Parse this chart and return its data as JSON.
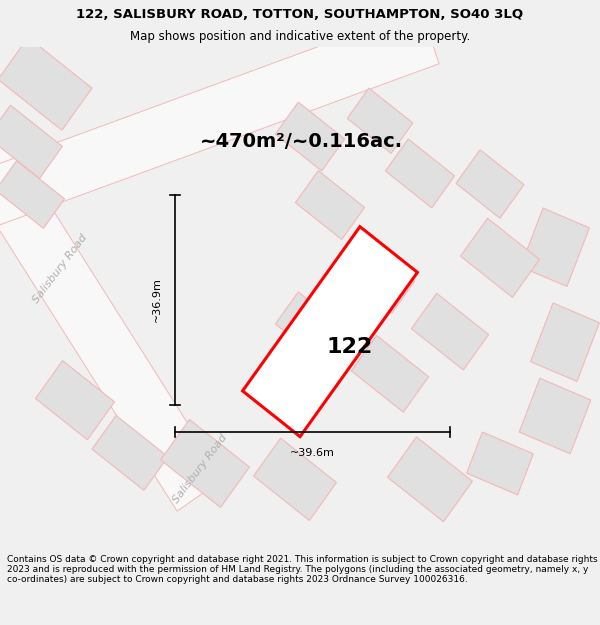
{
  "title_line1": "122, SALISBURY ROAD, TOTTON, SOUTHAMPTON, SO40 3LQ",
  "title_line2": "Map shows position and indicative extent of the property.",
  "area_label": "~470m²/~0.116ac.",
  "property_number": "122",
  "dim_width": "~39.6m",
  "dim_height": "~36.9m",
  "road_label_upper": "Salisbury Road",
  "road_label_lower": "Salisbury Road",
  "footer_text": "Contains OS data © Crown copyright and database right 2021. This information is subject to Crown copyright and database rights 2023 and is reproduced with the permission of HM Land Registry. The polygons (including the associated geometry, namely x, y co-ordinates) are subject to Crown copyright and database rights 2023 Ordnance Survey 100026316.",
  "bg_color": "#f0f0f0",
  "map_bg": "#f0f0f0",
  "property_fill": "#ffffff",
  "property_edge": "#ff0000",
  "building_fill": "#e0e0e0",
  "building_edge": "#f4b8b8",
  "road_fill": "#f8f8f8",
  "road_edge": "#f4b8b8",
  "dim_line_color": "#000000",
  "text_color": "#000000",
  "road_text_color": "#b0b0b0",
  "title_fontsize": 9.5,
  "subtitle_fontsize": 8.5,
  "area_fontsize": 14,
  "number_fontsize": 16,
  "dim_fontsize": 8,
  "road_fontsize": 8,
  "footer_fontsize": 6.5
}
